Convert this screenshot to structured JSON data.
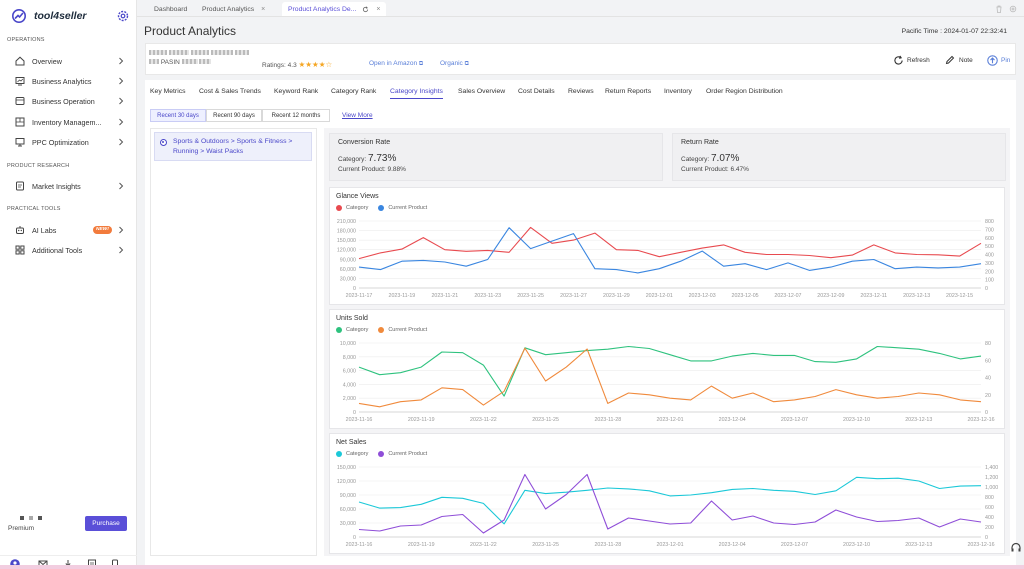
{
  "sidebar": {
    "brand": "tool4seller",
    "sections": [
      {
        "title": "OPERATIONS",
        "items": [
          {
            "label": "Overview",
            "icon": "home-icon"
          },
          {
            "label": "Business Analytics",
            "icon": "analytics-icon"
          },
          {
            "label": "Business Operation",
            "icon": "operation-icon"
          },
          {
            "label": "Inventory Managem...",
            "icon": "inventory-icon"
          },
          {
            "label": "PPC Optimization",
            "icon": "monitor-icon"
          }
        ]
      },
      {
        "title": "PRODUCT RESEARCH",
        "items": [
          {
            "label": "Market Insights",
            "icon": "market-icon"
          }
        ]
      },
      {
        "title": "PRACTICAL TOOLS",
        "items": [
          {
            "label": "AI Labs",
            "icon": "robot-icon",
            "badge": "NEW!"
          },
          {
            "label": "Additional Tools",
            "icon": "grid-icon"
          }
        ]
      }
    ],
    "premium_label": "Premium",
    "purchase_label": "Purchase"
  },
  "tabs": [
    {
      "label": "Dashboard"
    },
    {
      "label": "Product Analytics"
    },
    {
      "label": "Product Analytics De..."
    }
  ],
  "page": {
    "title": "Product Analytics",
    "time_label": "Pacific Time :",
    "time_value": "2024-01-07 22:32:41"
  },
  "product": {
    "asin_label": "PASIN",
    "ratings_label": "Ratings:",
    "rating_value": "4.3",
    "open_amazon": "Open in Amazon",
    "organic": "Organic",
    "refresh": "Refresh",
    "note": "Note",
    "pin": "Pin"
  },
  "nav_tabs": [
    "Key Metrics",
    "Cost & Sales Trends",
    "Keyword Rank",
    "Category Rank",
    "Category Insights",
    "Sales Overview",
    "Cost Details",
    "Reviews",
    "Return Reports",
    "Inventory",
    "Order Region Distribution"
  ],
  "active_nav_tab": "Category Insights",
  "range_buttons": [
    "Recent 30 days",
    "Recent 90 days",
    "Recent 12 months"
  ],
  "view_more": "View More",
  "category_path": "Sports & Outdoors > Sports & Fitness > Running > Waist Packs",
  "kpis": {
    "conversion": {
      "title": "Conversion Rate",
      "category_label": "Category:",
      "category_value": "7.73%",
      "product_label": "Current Product:",
      "product_value": "9.88%"
    },
    "return": {
      "title": "Return Rate",
      "category_label": "Category:",
      "category_value": "7.07%",
      "product_label": "Current Product:",
      "product_value": "6.47%"
    }
  },
  "colors": {
    "accent": "#4a47c9",
    "purchase": "#5a4fd8",
    "red": "#e84a4f",
    "blue": "#3a86e0",
    "green": "#2ec27e",
    "orange": "#f08a3c",
    "cyan": "#1bc8d8",
    "purple": "#8f4ed8"
  },
  "chart_data": [
    {
      "type": "line",
      "title": "Glance Views",
      "x": [
        "2023-11-17",
        "2023-11-18",
        "2023-11-19",
        "2023-11-20",
        "2023-11-21",
        "2023-11-22",
        "2023-11-23",
        "2023-11-24",
        "2023-11-25",
        "2023-11-26",
        "2023-11-27",
        "2023-11-28",
        "2023-11-29",
        "2023-11-30",
        "2023-12-01",
        "2023-12-02",
        "2023-12-03",
        "2023-12-04",
        "2023-12-05",
        "2023-12-06",
        "2023-12-07",
        "2023-12-08",
        "2023-12-09",
        "2023-12-10",
        "2023-12-11",
        "2023-12-12",
        "2023-12-13",
        "2023-12-14",
        "2023-12-15",
        "2023-12-16"
      ],
      "xticks": [
        "2023-11-17",
        "2023-11-19",
        "2023-11-21",
        "2023-11-23",
        "2023-11-25",
        "2023-11-27",
        "2023-11-29",
        "2023-12-01",
        "2023-12-03",
        "2023-12-05",
        "2023-12-07",
        "2023-12-09",
        "2023-12-11",
        "2023-12-13",
        "2023-12-15"
      ],
      "yticks_left": [
        "210,000",
        "180,000",
        "150,000",
        "120,000",
        "90,000",
        "60,000",
        "30,000",
        "0"
      ],
      "yticks_right": [
        "800",
        "700",
        "600",
        "500",
        "400",
        "300",
        "200",
        "100",
        "0"
      ],
      "ylim_left": [
        0,
        210000
      ],
      "ylim_right": [
        0,
        800
      ],
      "series": [
        {
          "name": "Category",
          "axis": "left",
          "values": [
            92000,
            110000,
            122000,
            158000,
            120000,
            115000,
            118000,
            112000,
            190000,
            140000,
            150000,
            172000,
            120000,
            118000,
            98000,
            112000,
            125000,
            135000,
            112000,
            105000,
            105000,
            102000,
            95000,
            103000,
            135000,
            110000,
            105000,
            104000,
            100000,
            140000
          ]
        },
        {
          "name": "Current Product",
          "axis": "right",
          "values": [
            250,
            220,
            320,
            330,
            310,
            260,
            340,
            720,
            470,
            560,
            650,
            230,
            220,
            180,
            230,
            320,
            440,
            260,
            290,
            220,
            300,
            210,
            250,
            320,
            340,
            230,
            250,
            240,
            250,
            290
          ]
        }
      ]
    },
    {
      "type": "line",
      "title": "Units Sold",
      "x": [
        "2023-11-16",
        "2023-11-17",
        "2023-11-18",
        "2023-11-19",
        "2023-11-20",
        "2023-11-21",
        "2023-11-22",
        "2023-11-23",
        "2023-11-24",
        "2023-11-25",
        "2023-11-26",
        "2023-11-27",
        "2023-11-28",
        "2023-11-29",
        "2023-11-30",
        "2023-12-01",
        "2023-12-02",
        "2023-12-03",
        "2023-12-04",
        "2023-12-05",
        "2023-12-06",
        "2023-12-07",
        "2023-12-08",
        "2023-12-09",
        "2023-12-10",
        "2023-12-11",
        "2023-12-12",
        "2023-12-13",
        "2023-12-14",
        "2023-12-15",
        "2023-12-16"
      ],
      "xticks": [
        "2023-11-16",
        "2023-11-19",
        "2023-11-22",
        "2023-11-25",
        "2023-11-28",
        "2023-12-01",
        "2023-12-04",
        "2023-12-07",
        "2023-12-10",
        "2023-12-13",
        "2023-12-16"
      ],
      "yticks_left": [
        "10,000",
        "8,000",
        "6,000",
        "4,000",
        "2,000",
        "0"
      ],
      "yticks_right": [
        "80",
        "60",
        "40",
        "20",
        "0"
      ],
      "ylim_left": [
        0,
        10000
      ],
      "ylim_right": [
        0,
        80
      ],
      "series": [
        {
          "name": "Category",
          "axis": "left",
          "values": [
            6500,
            5400,
            5700,
            6500,
            8700,
            8600,
            6800,
            2300,
            9300,
            8300,
            8600,
            8900,
            9100,
            9500,
            9200,
            8300,
            7400,
            7400,
            8100,
            8500,
            8200,
            8200,
            7300,
            7200,
            7700,
            9500,
            9300,
            9100,
            8500,
            7700,
            8100
          ]
        },
        {
          "name": "Current Product",
          "axis": "right",
          "values": [
            10,
            6,
            12,
            14,
            28,
            26,
            8,
            24,
            74,
            36,
            52,
            73,
            10,
            22,
            20,
            16,
            14,
            30,
            16,
            22,
            12,
            14,
            18,
            26,
            20,
            16,
            18,
            22,
            20,
            14,
            12
          ]
        }
      ]
    },
    {
      "type": "line",
      "title": "Net Sales",
      "x": [
        "2023-11-16",
        "2023-11-17",
        "2023-11-18",
        "2023-11-19",
        "2023-11-20",
        "2023-11-21",
        "2023-11-22",
        "2023-11-23",
        "2023-11-24",
        "2023-11-25",
        "2023-11-26",
        "2023-11-27",
        "2023-11-28",
        "2023-11-29",
        "2023-11-30",
        "2023-12-01",
        "2023-12-02",
        "2023-12-03",
        "2023-12-04",
        "2023-12-05",
        "2023-12-06",
        "2023-12-07",
        "2023-12-08",
        "2023-12-09",
        "2023-12-10",
        "2023-12-11",
        "2023-12-12",
        "2023-12-13",
        "2023-12-14",
        "2023-12-15",
        "2023-12-16"
      ],
      "xticks": [
        "2023-11-16",
        "2023-11-19",
        "2023-11-22",
        "2023-11-25",
        "2023-11-28",
        "2023-12-01",
        "2023-12-04",
        "2023-12-07",
        "2023-12-10",
        "2023-12-13",
        "2023-12-16"
      ],
      "yticks_left": [
        "150,000",
        "120,000",
        "90,000",
        "60,000",
        "30,000",
        "0"
      ],
      "yticks_right": [
        "1,400",
        "1,200",
        "1,000",
        "800",
        "600",
        "400",
        "200",
        "0"
      ],
      "ylim_left": [
        0,
        150000
      ],
      "ylim_right": [
        0,
        1400
      ],
      "series": [
        {
          "name": "Category",
          "axis": "left",
          "values": [
            75000,
            62000,
            63000,
            70000,
            85000,
            83000,
            72000,
            28000,
            100000,
            93000,
            96000,
            100000,
            105000,
            103000,
            99000,
            88000,
            90000,
            95000,
            102000,
            104000,
            100000,
            98000,
            91000,
            99000,
            128000,
            125000,
            126000,
            120000,
            104000,
            109000,
            110000
          ]
        },
        {
          "name": "Current Product",
          "axis": "right",
          "values": [
            150,
            120,
            220,
            240,
            410,
            450,
            80,
            340,
            1250,
            560,
            850,
            1250,
            160,
            380,
            320,
            260,
            280,
            720,
            340,
            420,
            280,
            250,
            300,
            540,
            400,
            310,
            330,
            380,
            200,
            360,
            300
          ]
        }
      ]
    }
  ]
}
